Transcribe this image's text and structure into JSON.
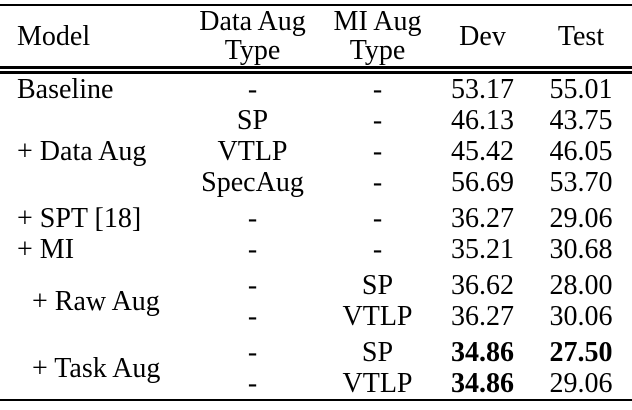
{
  "page": {
    "background_color": "#ffffff",
    "text_color": "#000000"
  },
  "table": {
    "header": {
      "model": "Model",
      "data_aug_line1": "Data Aug",
      "data_aug_line2": "Type",
      "mi_aug_line1": "MI Aug",
      "mi_aug_line2": "Type",
      "dev": "Dev",
      "test": "Test"
    },
    "groups": [
      {
        "model": "Baseline",
        "rows": [
          {
            "data_aug": "-",
            "mi_aug": "-",
            "dev": "53.17",
            "test": "55.01",
            "dev_bold": false,
            "test_bold": false
          }
        ]
      },
      {
        "model": "+ Data Aug",
        "rows": [
          {
            "data_aug": "SP",
            "mi_aug": "-",
            "dev": "46.13",
            "test": "43.75",
            "dev_bold": false,
            "test_bold": false
          },
          {
            "data_aug": "VTLP",
            "mi_aug": "-",
            "dev": "45.42",
            "test": "46.05",
            "dev_bold": false,
            "test_bold": false
          },
          {
            "data_aug": "SpecAug",
            "mi_aug": "-",
            "dev": "56.69",
            "test": "53.70",
            "dev_bold": false,
            "test_bold": false
          }
        ]
      },
      {
        "model": "+ SPT [18]",
        "rows": [
          {
            "data_aug": "-",
            "mi_aug": "-",
            "dev": "36.27",
            "test": "29.06",
            "dev_bold": false,
            "test_bold": false
          }
        ]
      },
      {
        "model": "+ MI",
        "rows": [
          {
            "data_aug": "-",
            "mi_aug": "-",
            "dev": "35.21",
            "test": "30.68",
            "dev_bold": false,
            "test_bold": false
          }
        ]
      },
      {
        "model": "+ Raw Aug",
        "indented": true,
        "rows": [
          {
            "data_aug": "-",
            "mi_aug": "SP",
            "dev": "36.62",
            "test": "28.00",
            "dev_bold": false,
            "test_bold": false
          },
          {
            "data_aug": "-",
            "mi_aug": "VTLP",
            "dev": "36.27",
            "test": "30.06",
            "dev_bold": false,
            "test_bold": false
          }
        ]
      },
      {
        "model": "+ Task Aug",
        "indented": true,
        "rows": [
          {
            "data_aug": "-",
            "mi_aug": "SP",
            "dev": "34.86",
            "test": "27.50",
            "dev_bold": true,
            "test_bold": true
          },
          {
            "data_aug": "-",
            "mi_aug": "VTLP",
            "dev": "34.86",
            "test": "29.06",
            "dev_bold": true,
            "test_bold": false
          }
        ]
      }
    ]
  }
}
